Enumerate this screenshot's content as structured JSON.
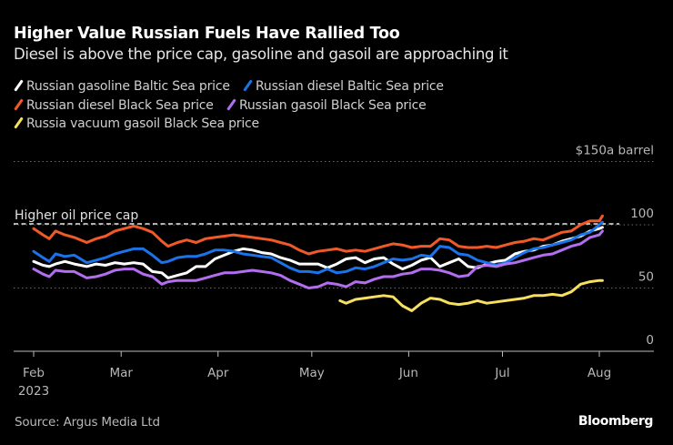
{
  "header": {
    "title": "Higher Value Russian Fuels Have Rallied Too",
    "subtitle": "Diesel is above the price cap, gasoline and gasoil are approaching it"
  },
  "footer": {
    "source": "Source: Argus Media Ltd",
    "brand": "Bloomberg"
  },
  "chart_data": {
    "type": "line",
    "title": "Higher Value Russian Fuels Have Rallied Too",
    "subtitle": "Diesel is above the price cap, gasoline and gasoil are approaching it",
    "xlabel": "",
    "ylabel": "$ a barrel",
    "y_unit_label": "a barrel",
    "y_currency_prefix": "$",
    "ylim": [
      0,
      150
    ],
    "yticks": [
      0,
      50,
      100,
      150
    ],
    "ytick_labels": [
      "0",
      "50",
      "100",
      "$150a barrel"
    ],
    "y_axis_side": "right",
    "grid": true,
    "legend_placement": "top-left",
    "x_unit": "days since 2023-02-01",
    "xlim": [
      -1,
      199
    ],
    "xticks": [
      {
        "day": 0,
        "label": "Feb",
        "sublabel": "2023"
      },
      {
        "day": 28,
        "label": "Mar",
        "sublabel": ""
      },
      {
        "day": 59,
        "label": "Apr",
        "sublabel": ""
      },
      {
        "day": 89,
        "label": "May",
        "sublabel": ""
      },
      {
        "day": 120,
        "label": "Jun",
        "sublabel": ""
      },
      {
        "day": 150,
        "label": "Jul",
        "sublabel": ""
      },
      {
        "day": 181,
        "label": "Aug",
        "sublabel": ""
      }
    ],
    "annotations": [
      {
        "type": "hline",
        "y": 100,
        "label": "Higher oil price cap",
        "style": "dashed"
      }
    ],
    "series": [
      {
        "name": "Russian gasoline Baltic Sea price",
        "color": "#ffffff",
        "x": [
          0,
          3,
          5,
          7,
          10,
          13,
          17,
          20,
          23,
          26,
          29,
          32,
          35,
          38,
          41,
          43,
          46,
          49,
          52,
          55,
          58,
          61,
          64,
          67,
          70,
          73,
          76,
          79,
          82,
          85,
          88,
          91,
          94,
          97,
          100,
          103,
          106,
          109,
          112,
          115,
          118,
          121,
          124,
          127,
          130,
          133,
          136,
          139,
          142,
          145,
          148,
          151,
          154,
          157,
          160,
          163,
          166,
          169,
          172,
          175,
          178,
          181,
          182
        ],
        "values": [
          71,
          68,
          67,
          69,
          71,
          69,
          67,
          69,
          68,
          70,
          69,
          70,
          69,
          63,
          62,
          58,
          60,
          62,
          67,
          67,
          73,
          76,
          79,
          81,
          80,
          78,
          77,
          74,
          72,
          69,
          69,
          69,
          66,
          69,
          73,
          74,
          70,
          73,
          74,
          69,
          65,
          68,
          72,
          74,
          67,
          70,
          73,
          67,
          66,
          69,
          71,
          72,
          77,
          79,
          80,
          83,
          84,
          87,
          89,
          91,
          95,
          97,
          98
        ]
      },
      {
        "name": "Russian diesel Baltic Sea price",
        "color": "#1a73e8",
        "x": [
          0,
          3,
          5,
          7,
          10,
          13,
          17,
          20,
          23,
          26,
          29,
          32,
          35,
          38,
          41,
          43,
          46,
          49,
          52,
          55,
          58,
          61,
          64,
          67,
          70,
          73,
          76,
          79,
          82,
          85,
          88,
          91,
          94,
          97,
          100,
          103,
          106,
          109,
          112,
          115,
          118,
          121,
          124,
          127,
          130,
          133,
          136,
          139,
          142,
          145,
          148,
          151,
          154,
          157,
          160,
          163,
          166,
          169,
          172,
          175,
          178,
          181,
          182
        ],
        "values": [
          79,
          74,
          71,
          77,
          75,
          76,
          70,
          72,
          74,
          77,
          79,
          81,
          81,
          76,
          70,
          71,
          74,
          75,
          75,
          77,
          80,
          80,
          79,
          77,
          76,
          75,
          74,
          70,
          66,
          63,
          63,
          62,
          65,
          62,
          63,
          66,
          65,
          67,
          70,
          73,
          72,
          73,
          76,
          75,
          83,
          82,
          77,
          76,
          72,
          70,
          68,
          70,
          74,
          78,
          81,
          82,
          84,
          86,
          88,
          92,
          94,
          100,
          102
        ]
      },
      {
        "name": "Russian diesel Black Sea price",
        "color": "#f05a28",
        "x": [
          0,
          3,
          5,
          7,
          10,
          13,
          17,
          20,
          23,
          26,
          29,
          32,
          35,
          38,
          41,
          43,
          46,
          49,
          52,
          55,
          58,
          61,
          64,
          67,
          70,
          73,
          76,
          79,
          82,
          85,
          88,
          91,
          94,
          97,
          100,
          103,
          106,
          109,
          112,
          115,
          118,
          121,
          124,
          127,
          130,
          133,
          136,
          139,
          142,
          145,
          148,
          151,
          154,
          157,
          160,
          163,
          166,
          169,
          172,
          175,
          178,
          181,
          182
        ],
        "values": [
          97,
          92,
          89,
          95,
          92,
          90,
          86,
          89,
          91,
          95,
          97,
          99,
          97,
          94,
          87,
          83,
          86,
          88,
          86,
          89,
          90,
          91,
          92,
          91,
          90,
          89,
          88,
          86,
          84,
          80,
          77,
          79,
          80,
          81,
          79,
          80,
          79,
          81,
          83,
          85,
          84,
          82,
          83,
          83,
          89,
          88,
          83,
          82,
          82,
          83,
          82,
          84,
          86,
          87,
          89,
          88,
          91,
          94,
          95,
          100,
          103,
          103,
          107
        ]
      },
      {
        "name": "Russian gasoil Black Sea price",
        "color": "#b36ef0",
        "x": [
          0,
          3,
          5,
          7,
          10,
          13,
          17,
          20,
          23,
          26,
          29,
          32,
          35,
          38,
          41,
          43,
          46,
          49,
          52,
          55,
          58,
          61,
          64,
          67,
          70,
          73,
          76,
          79,
          82,
          85,
          88,
          91,
          94,
          97,
          100,
          103,
          106,
          109,
          112,
          115,
          118,
          121,
          124,
          127,
          130,
          133,
          136,
          139,
          142,
          145,
          148,
          151,
          154,
          157,
          160,
          163,
          166,
          169,
          172,
          175,
          178,
          181,
          182
        ],
        "values": [
          65,
          61,
          59,
          64,
          63,
          63,
          58,
          59,
          61,
          64,
          65,
          65,
          61,
          59,
          53,
          55,
          56,
          56,
          56,
          58,
          60,
          62,
          62,
          63,
          64,
          63,
          62,
          60,
          56,
          53,
          50,
          51,
          54,
          53,
          51,
          55,
          54,
          57,
          59,
          59,
          61,
          62,
          65,
          65,
          64,
          62,
          59,
          60,
          67,
          68,
          67,
          69,
          70,
          72,
          74,
          76,
          77,
          80,
          83,
          85,
          90,
          92,
          95
        ]
      },
      {
        "name": "Russia vacuum gasoil Black Sea price",
        "color": "#f6e05e",
        "x": [
          98,
          100,
          103,
          106,
          109,
          112,
          115,
          118,
          121,
          124,
          127,
          130,
          133,
          136,
          139,
          142,
          145,
          148,
          151,
          154,
          157,
          160,
          163,
          166,
          169,
          172,
          175,
          178,
          181,
          182
        ],
        "values": [
          40,
          38,
          41,
          42,
          43,
          44,
          43,
          36,
          32,
          38,
          42,
          41,
          38,
          37,
          38,
          40,
          38,
          39,
          40,
          41,
          42,
          44,
          44,
          45,
          44,
          47,
          53,
          55,
          56,
          56
        ]
      }
    ]
  }
}
